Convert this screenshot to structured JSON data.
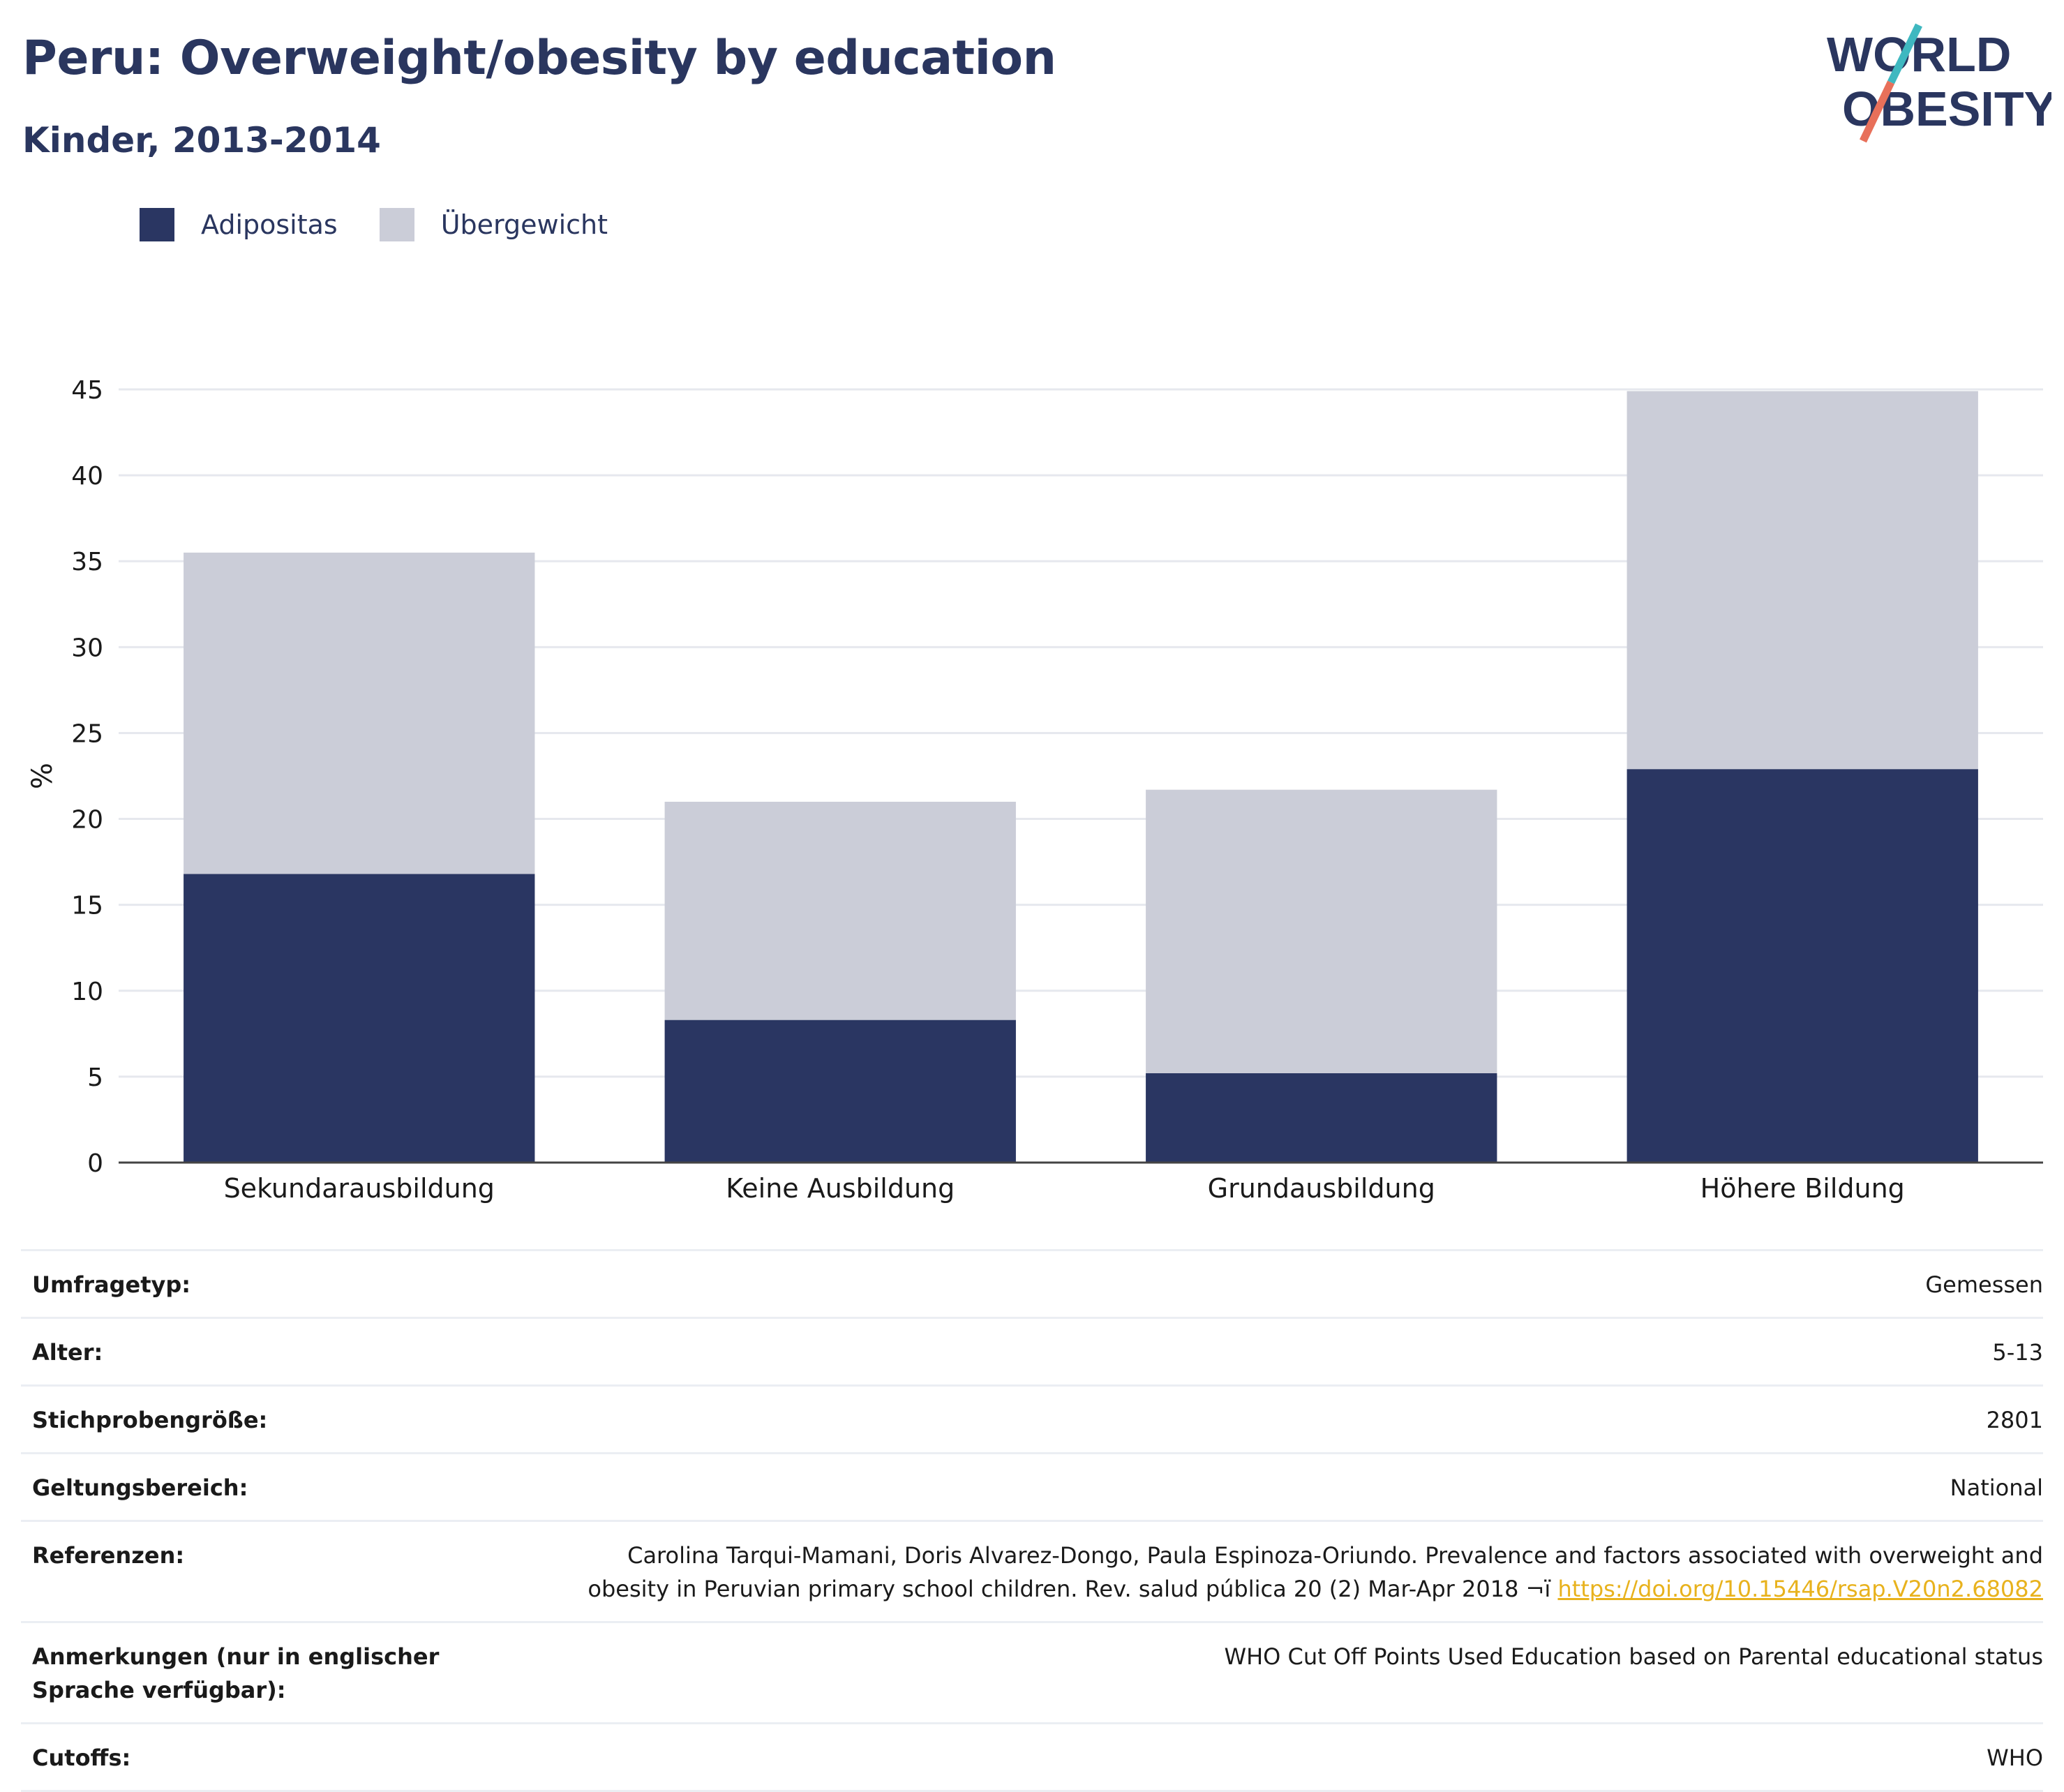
{
  "header": {
    "title": "Peru: Overweight/obesity by education",
    "subtitle": "Kinder, 2013-2014"
  },
  "logo": {
    "line1": "WORLD",
    "line2": "OBESITY",
    "colors": {
      "text": "#2a365f",
      "slash_top": "#3fb8c0",
      "slash_bottom": "#e8705a"
    }
  },
  "chart_data": {
    "type": "bar",
    "stacked": true,
    "categories": [
      "Sekundarausbildung",
      "Keine Ausbildung",
      "Grundausbildung",
      "Höhere Bildung"
    ],
    "series": [
      {
        "name": "Adipositas",
        "color": "#2a3662",
        "values": [
          16.8,
          8.3,
          5.2,
          22.9
        ]
      },
      {
        "name": "Übergewicht",
        "color": "#cbcdd8",
        "values": [
          18.7,
          12.7,
          16.5,
          22.0
        ]
      }
    ],
    "title": "",
    "xlabel": "",
    "ylabel": "%",
    "ylim": [
      0,
      45
    ],
    "yticks": [
      0,
      5,
      10,
      15,
      20,
      25,
      30,
      35,
      40,
      45
    ],
    "grid": true,
    "legend_position": "top-left"
  },
  "meta": [
    {
      "label": "Umfragetyp:",
      "value": "Gemessen"
    },
    {
      "label": "Alter:",
      "value": "5-13"
    },
    {
      "label": "Stichprobengröße:",
      "value": "2801"
    },
    {
      "label": "Geltungsbereich:",
      "value": "National"
    },
    {
      "label": "Referenzen:",
      "value": "Carolina Tarqui-Mamani, Doris Alvarez-Dongo, Paula Espinoza-Oriundo. Prevalence and factors associated with overweight and obesity in Peruvian primary school children. Rev. salud pública 20 (2) Mar-Apr 2018 ¬ï",
      "link": "https://doi.org/10.15446/rsap.V20n2.68082"
    },
    {
      "label": "Anmerkungen (nur in englischer Sprache verfügbar):",
      "value": "WHO Cut Off Points Used Education based on Parental educational status"
    },
    {
      "label": "Cutoffs:",
      "value": "WHO"
    }
  ]
}
